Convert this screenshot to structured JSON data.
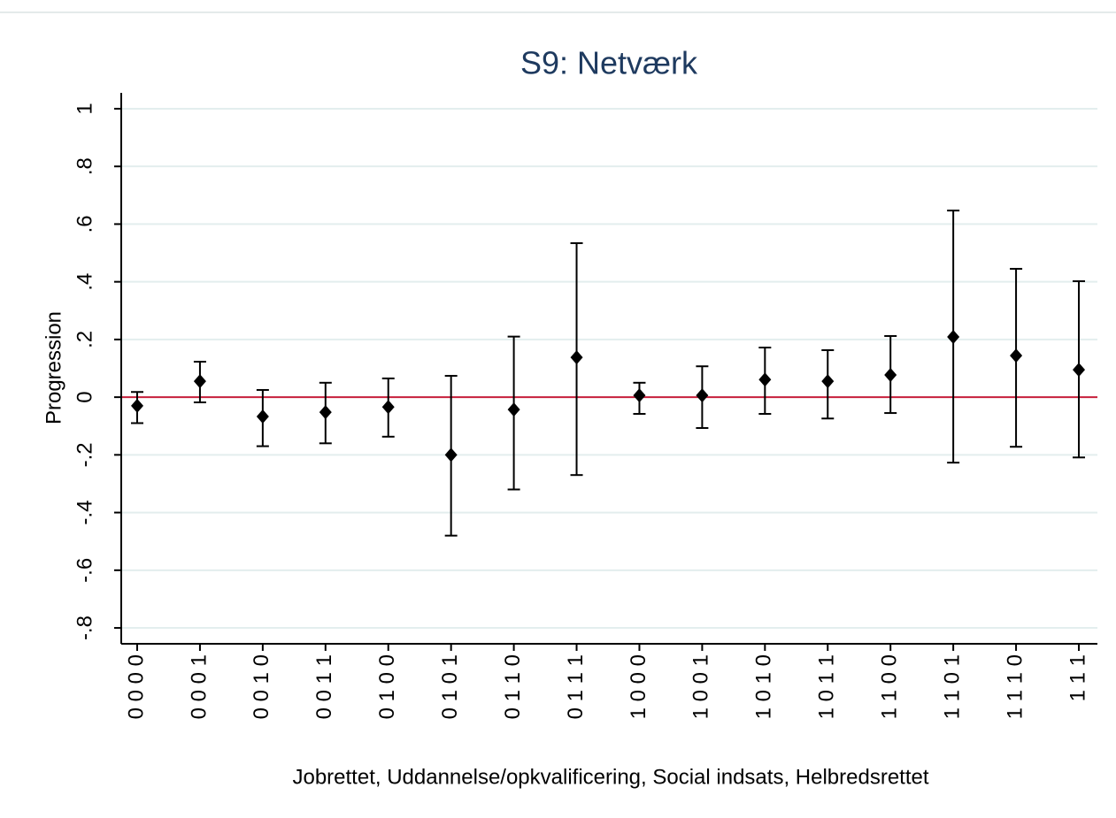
{
  "chart_data": {
    "type": "errorbar",
    "title": "S9: Netværk",
    "x_label": "Jobrettet, Uddannelse/opkvalificering, Social indsats, Helbredsrettet",
    "y_label": "Progression",
    "categories": [
      "0 0 0 0",
      "0 0 0 1",
      "0 0 1 0",
      "0 0 1 1",
      "0 1 0 0",
      "0 1 0 1",
      "0 1 1 0",
      "0 1 1 1",
      "1 0 0 0",
      "1 0 0 1",
      "1 0 1 0",
      "1 0 1 1",
      "1 1 0 0",
      "1 1 0 1",
      "1 1 1 0",
      "1 1 1"
    ],
    "series": [
      {
        "color": "#000000",
        "values": [
          -0.03,
          0.055,
          -0.067,
          -0.052,
          -0.034,
          -0.2,
          -0.043,
          0.138,
          0.006,
          0.006,
          0.061,
          0.055,
          0.077,
          0.209,
          0.144,
          0.095
        ],
        "lower": [
          -0.09,
          -0.018,
          -0.17,
          -0.16,
          -0.137,
          -0.48,
          -0.32,
          -0.27,
          -0.058,
          -0.107,
          -0.058,
          -0.074,
          -0.055,
          -0.227,
          -0.172,
          -0.209
        ],
        "upper": [
          0.018,
          0.123,
          0.025,
          0.05,
          0.065,
          0.074,
          0.21,
          0.534,
          0.05,
          0.107,
          0.172,
          0.163,
          0.212,
          0.647,
          0.445,
          0.402
        ]
      }
    ],
    "reference_line": 0,
    "reference_color": "#c8203c",
    "ylim": [
      -0.855,
      1.055
    ],
    "yticks": [
      {
        "value": -0.8,
        "label": "-.8"
      },
      {
        "value": -0.6,
        "label": "-.6"
      },
      {
        "value": -0.4,
        "label": "-.4"
      },
      {
        "value": -0.2,
        "label": "-.2"
      },
      0,
      {
        "value": 0.2,
        "label": ".2"
      },
      {
        "value": 0.4,
        "label": ".4"
      },
      {
        "value": 0.6,
        "label": ".6"
      },
      {
        "value": 0.8,
        "label": ".8"
      },
      1
    ],
    "grid": true
  }
}
